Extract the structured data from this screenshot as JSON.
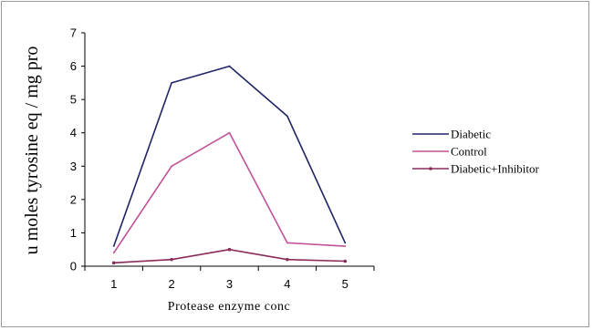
{
  "chart_data": {
    "type": "line",
    "xlabel": "Protease enzyme conc",
    "ylabel": "u moles tyrosine eq / mg pro",
    "categories": [
      "1",
      "2",
      "3",
      "4",
      "5"
    ],
    "ylim": [
      0,
      7
    ],
    "yticks": [
      "0",
      "1",
      "2",
      "3",
      "4",
      "5",
      "6",
      "7"
    ],
    "grid": false,
    "legend_position": "right",
    "series": [
      {
        "name": "Diabetic",
        "values": [
          0.6,
          5.5,
          6.0,
          4.5,
          0.7
        ],
        "color": "#1f2466",
        "marker": "none"
      },
      {
        "name": "Control",
        "values": [
          0.4,
          3.0,
          4.0,
          0.7,
          0.6
        ],
        "color": "#c0509a",
        "marker": "none"
      },
      {
        "name": "Diabetic+Inhibitor",
        "values": [
          0.1,
          0.2,
          0.5,
          0.2,
          0.15
        ],
        "color": "#8a2b5a",
        "marker": "dot"
      }
    ]
  }
}
